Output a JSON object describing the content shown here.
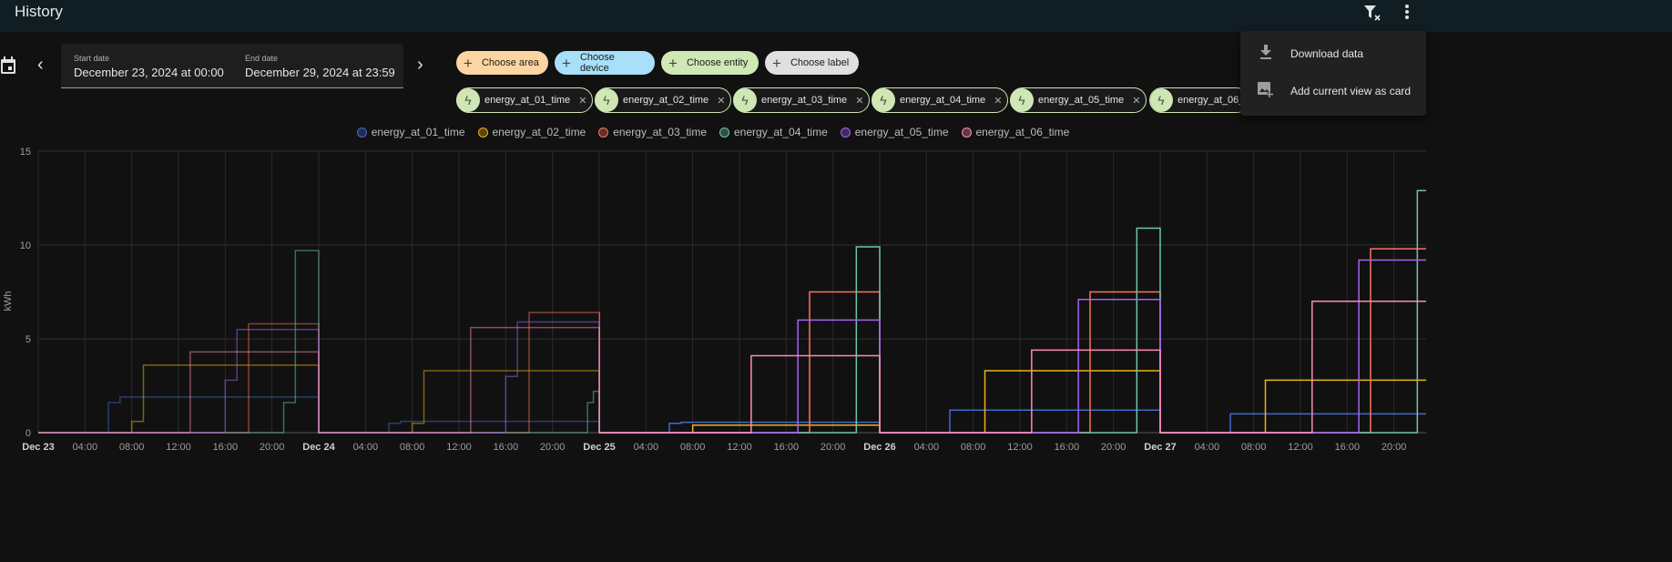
{
  "header": {
    "title": "History",
    "icons": [
      "filter-remove-icon",
      "more-vertical-icon"
    ]
  },
  "date_picker": {
    "start_label": "Start date",
    "start_value": "December 23, 2024 at 00:00",
    "end_label": "End date",
    "end_value": "December 29, 2024 at 23:59"
  },
  "target_picker": {
    "chips": [
      {
        "label": "Choose area",
        "color": "#fdd5a2"
      },
      {
        "label": "Choose device",
        "color": "#a8e0fa"
      },
      {
        "label": "Choose entity",
        "color": "#d0e8b5"
      },
      {
        "label": "Choose label",
        "color": "#e0e0e0"
      }
    ],
    "entities": [
      "energy_at_01_time",
      "energy_at_02_time",
      "energy_at_03_time",
      "energy_at_04_time",
      "energy_at_05_time",
      "energy_at_06_"
    ]
  },
  "menu": {
    "items": [
      {
        "label": "Download data",
        "icon": "download-icon"
      },
      {
        "label": "Add current view as card",
        "icon": "image-plus-icon"
      }
    ]
  },
  "chart_data": {
    "type": "line",
    "step": true,
    "ylabel": "kWh",
    "ylim": [
      0,
      15
    ],
    "yticks": [
      "0",
      "5",
      "10",
      "15"
    ],
    "xlim": [
      "2024-12-23T00:00",
      "2024-12-27T22:45"
    ],
    "xticks": [
      "Dec 23",
      "04:00",
      "08:00",
      "12:00",
      "16:00",
      "20:00",
      "Dec 24",
      "04:00",
      "08:00",
      "12:00",
      "16:00",
      "20:00",
      "Dec 25",
      "04:00",
      "08:00",
      "12:00",
      "16:00",
      "20:00",
      "Dec 26",
      "04:00",
      "08:00",
      "12:00",
      "16:00",
      "20:00",
      "Dec 27",
      "04:00",
      "08:00",
      "12:00",
      "16:00",
      "20:00"
    ],
    "grid": true,
    "legend": "top-center",
    "series": [
      {
        "name": "energy_at_01_time",
        "color": "#4269d0",
        "points": [
          [
            "2024-12-23T00:00",
            0
          ],
          [
            "2024-12-23T06:00",
            1.6
          ],
          [
            "2024-12-23T07:00",
            1.9
          ],
          [
            "2024-12-24T00:00",
            0
          ],
          [
            "2024-12-24T06:00",
            0.5
          ],
          [
            "2024-12-24T07:00",
            0.6
          ],
          [
            "2024-12-25T00:00",
            0
          ],
          [
            "2024-12-25T06:00",
            0.5
          ],
          [
            "2024-12-25T07:00",
            0.55
          ],
          [
            "2024-12-26T00:00",
            0
          ],
          [
            "2024-12-26T06:00",
            1.2
          ],
          [
            "2024-12-27T00:00",
            0
          ],
          [
            "2024-12-27T06:00",
            1.0
          ],
          [
            "2024-12-27T22:45",
            1.0
          ]
        ]
      },
      {
        "name": "energy_at_02_time",
        "color": "#efb118",
        "points": [
          [
            "2024-12-23T00:00",
            0
          ],
          [
            "2024-12-23T08:00",
            0.6
          ],
          [
            "2024-12-23T09:00",
            3.6
          ],
          [
            "2024-12-24T00:00",
            0
          ],
          [
            "2024-12-24T08:00",
            0.5
          ],
          [
            "2024-12-24T09:00",
            3.3
          ],
          [
            "2024-12-25T00:00",
            0
          ],
          [
            "2024-12-25T08:00",
            0.4
          ],
          [
            "2024-12-26T00:00",
            0
          ],
          [
            "2024-12-26T09:00",
            3.3
          ],
          [
            "2024-12-27T00:00",
            0
          ],
          [
            "2024-12-27T09:00",
            2.8
          ],
          [
            "2024-12-27T22:45",
            2.8
          ]
        ]
      },
      {
        "name": "energy_at_03_time",
        "color": "#ff725c",
        "points": [
          [
            "2024-12-23T00:00",
            0
          ],
          [
            "2024-12-23T18:00",
            5.8
          ],
          [
            "2024-12-24T00:00",
            0
          ],
          [
            "2024-12-24T18:00",
            6.4
          ],
          [
            "2024-12-25T00:00",
            0
          ],
          [
            "2024-12-25T18:00",
            7.5
          ],
          [
            "2024-12-26T00:00",
            0
          ],
          [
            "2024-12-26T18:00",
            7.5
          ],
          [
            "2024-12-27T00:00",
            0
          ],
          [
            "2024-12-27T18:00",
            9.8
          ],
          [
            "2024-12-27T22:45",
            9.8
          ]
        ]
      },
      {
        "name": "energy_at_04_time",
        "color": "#6cc5b0",
        "points": [
          [
            "2024-12-23T00:00",
            0
          ],
          [
            "2024-12-23T21:00",
            1.6
          ],
          [
            "2024-12-23T22:00",
            9.7
          ],
          [
            "2024-12-24T00:00",
            0
          ],
          [
            "2024-12-24T23:00",
            1.6
          ],
          [
            "2024-12-24T23:30",
            2.2
          ],
          [
            "2024-12-25T00:00",
            0
          ],
          [
            "2024-12-25T22:00",
            9.9
          ],
          [
            "2024-12-26T00:00",
            0
          ],
          [
            "2024-12-26T22:00",
            10.9
          ],
          [
            "2024-12-27T00:00",
            0
          ],
          [
            "2024-12-27T22:00",
            12.9
          ],
          [
            "2024-12-27T22:45",
            12.9
          ]
        ]
      },
      {
        "name": "energy_at_05_time",
        "color": "#a463f2",
        "points": [
          [
            "2024-12-23T00:00",
            0
          ],
          [
            "2024-12-23T16:00",
            2.8
          ],
          [
            "2024-12-23T17:00",
            5.5
          ],
          [
            "2024-12-24T00:00",
            0
          ],
          [
            "2024-12-24T16:00",
            3.0
          ],
          [
            "2024-12-24T17:00",
            5.9
          ],
          [
            "2024-12-25T00:00",
            0
          ],
          [
            "2024-12-25T17:00",
            6.0
          ],
          [
            "2024-12-26T00:00",
            0
          ],
          [
            "2024-12-26T17:00",
            7.1
          ],
          [
            "2024-12-27T00:00",
            0
          ],
          [
            "2024-12-27T17:00",
            9.2
          ],
          [
            "2024-12-27T22:45",
            9.2
          ]
        ]
      },
      {
        "name": "energy_at_06_time",
        "color": "#ff8ab7",
        "points": [
          [
            "2024-12-23T00:00",
            0
          ],
          [
            "2024-12-23T13:00",
            4.3
          ],
          [
            "2024-12-24T00:00",
            0
          ],
          [
            "2024-12-24T13:00",
            5.6
          ],
          [
            "2024-12-25T00:00",
            0
          ],
          [
            "2024-12-25T13:00",
            4.1
          ],
          [
            "2024-12-26T00:00",
            0
          ],
          [
            "2024-12-26T13:00",
            4.4
          ],
          [
            "2024-12-27T00:00",
            0
          ],
          [
            "2024-12-27T13:00",
            7.0
          ],
          [
            "2024-12-27T22:45",
            7.0
          ]
        ]
      }
    ]
  }
}
